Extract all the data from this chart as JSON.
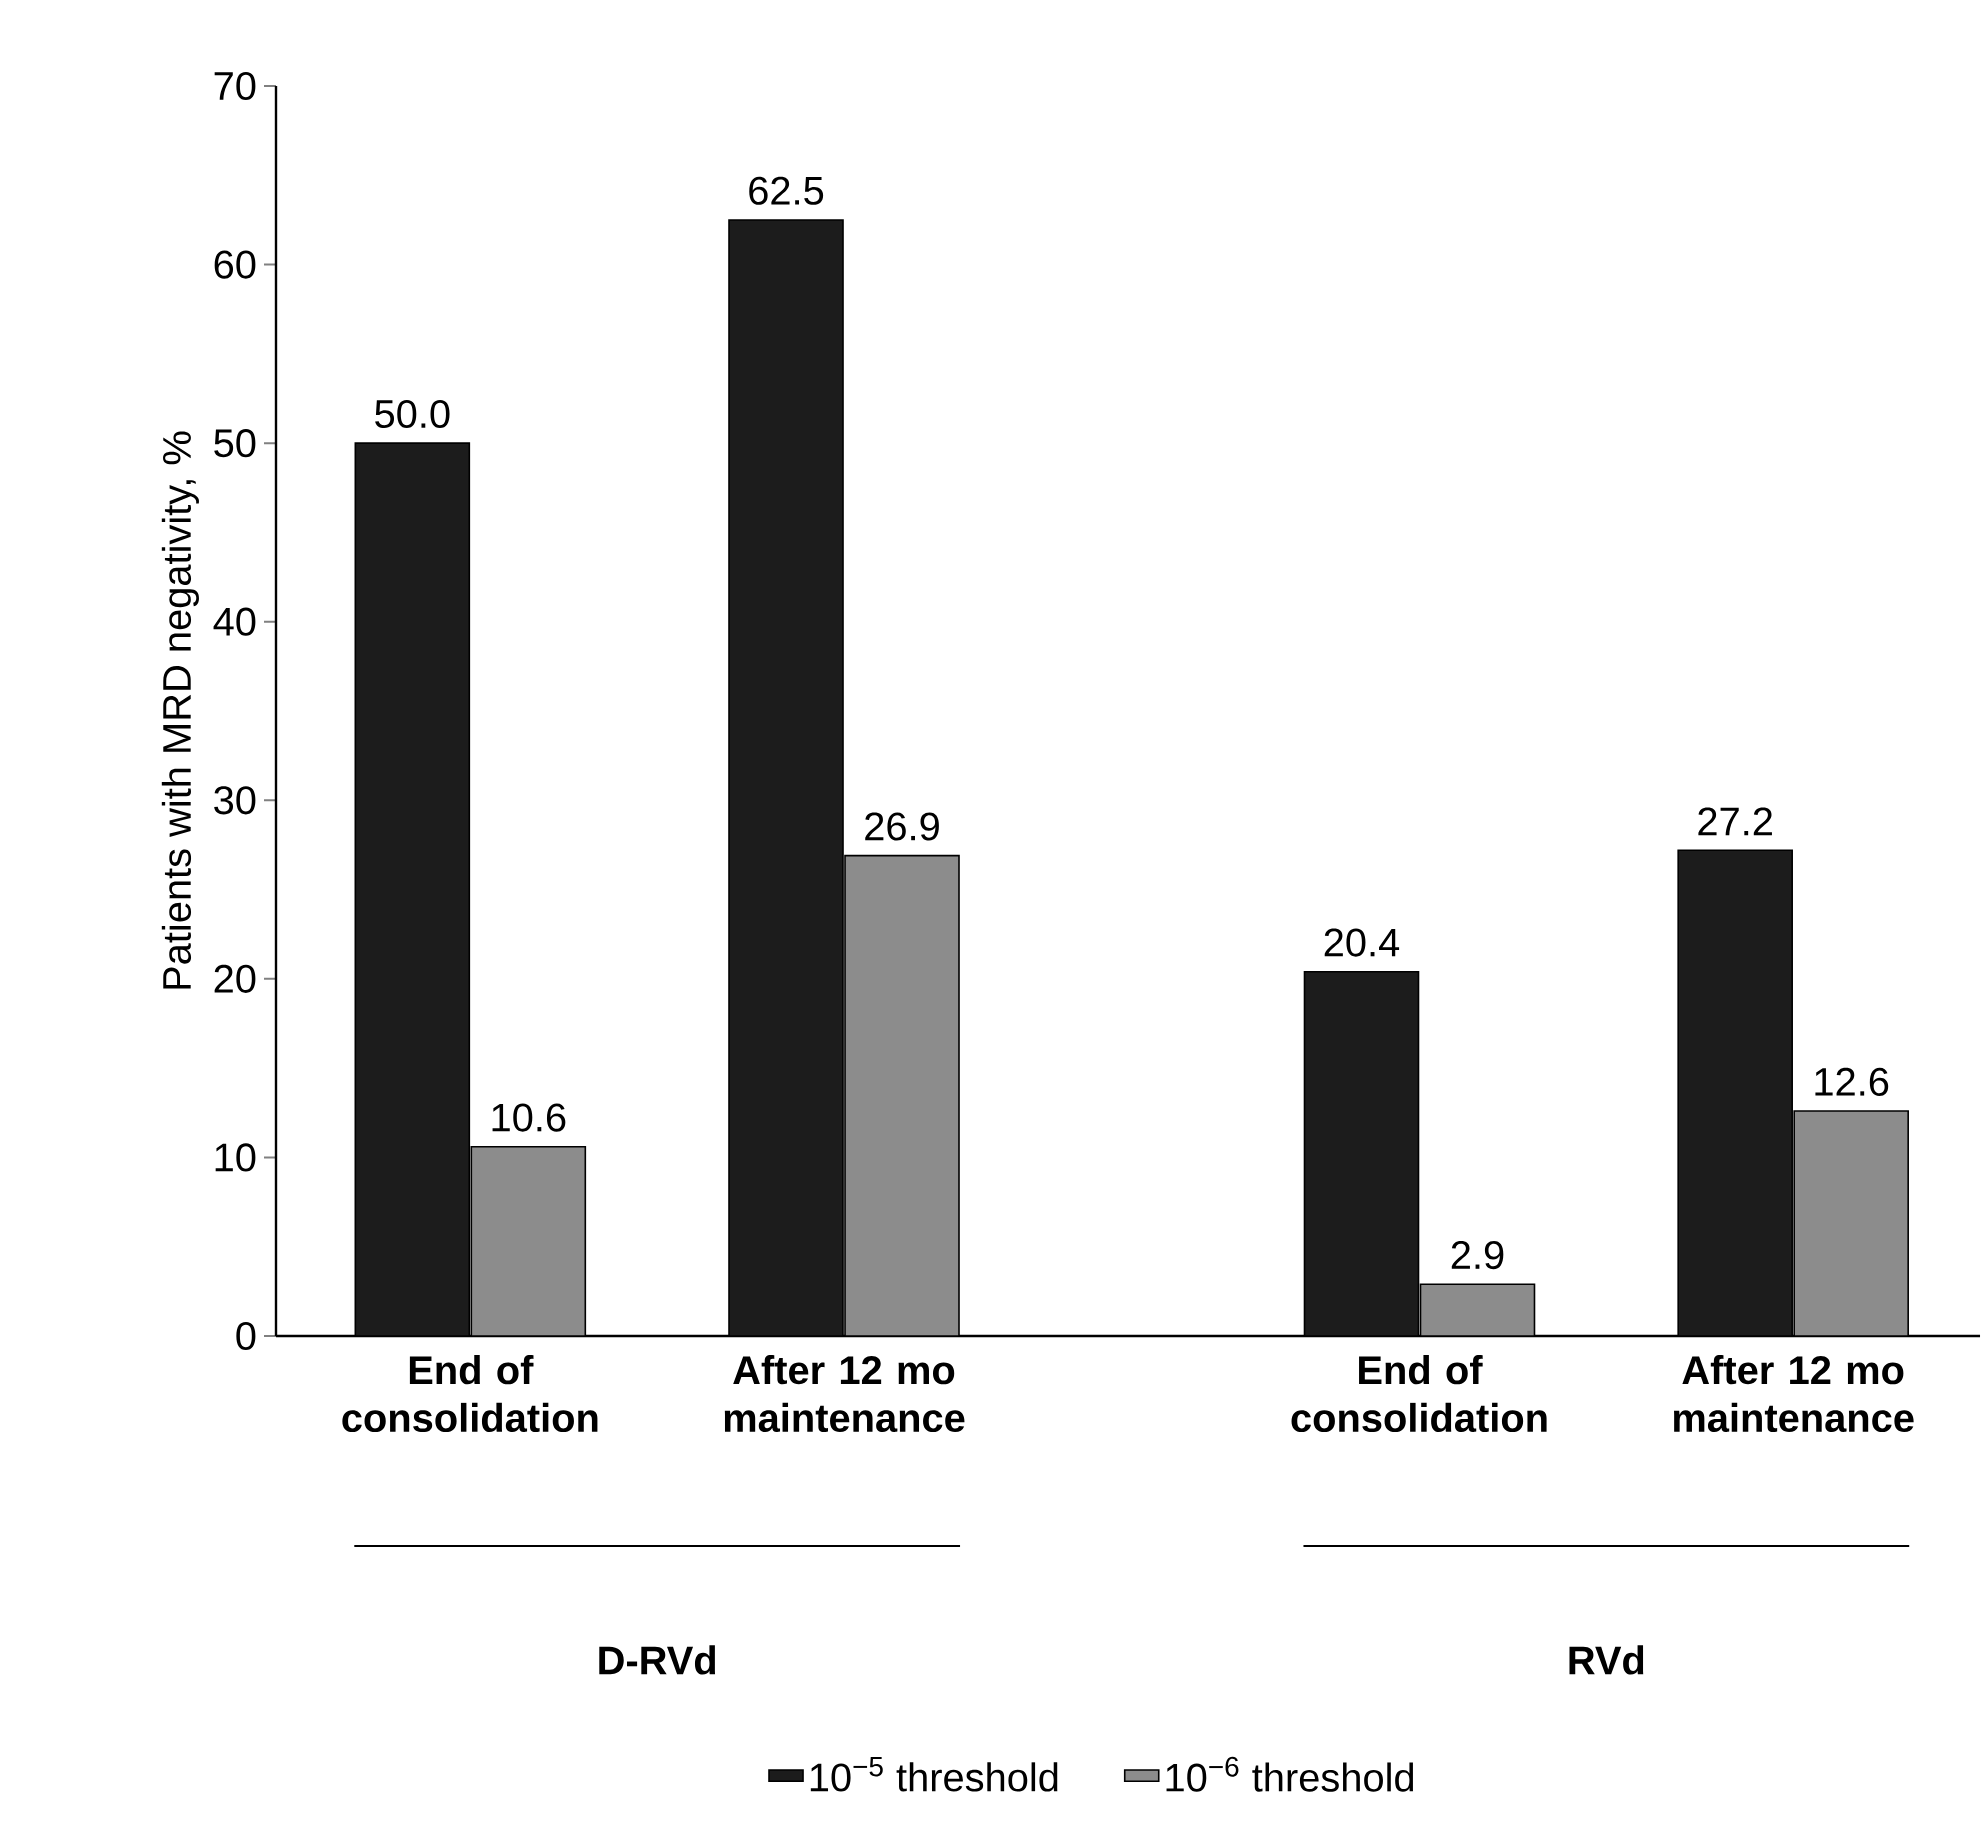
{
  "chart_data": {
    "type": "bar",
    "ylabel": "Patients with MRD negativity, %",
    "categories": [
      "End of consolidation",
      "After 12 mo maintenance",
      "End of consolidation",
      "After 12 mo maintenance"
    ],
    "series": [
      {
        "name": "10$^{−5}$ threshold",
        "color": "#1c1c1c",
        "values": [
          50.0,
          62.5,
          20.4,
          27.2
        ],
        "value_labels": [
          "50.0",
          "62.5",
          "20.4",
          "27.2"
        ]
      },
      {
        "name": "10$^{−6}$ threshold",
        "color": "#8c8c8c",
        "values": [
          10.6,
          26.9,
          2.9,
          12.6
        ],
        "value_labels": [
          "10.6",
          "26.9",
          "2.9",
          "12.6"
        ]
      }
    ],
    "annotations": [
      "D-RVd",
      "RVd"
    ],
    "ylim": [
      0,
      70
    ],
    "yticks": [
      0,
      10,
      20,
      30,
      40,
      50,
      60,
      70
    ],
    "legend": "bottom"
  }
}
